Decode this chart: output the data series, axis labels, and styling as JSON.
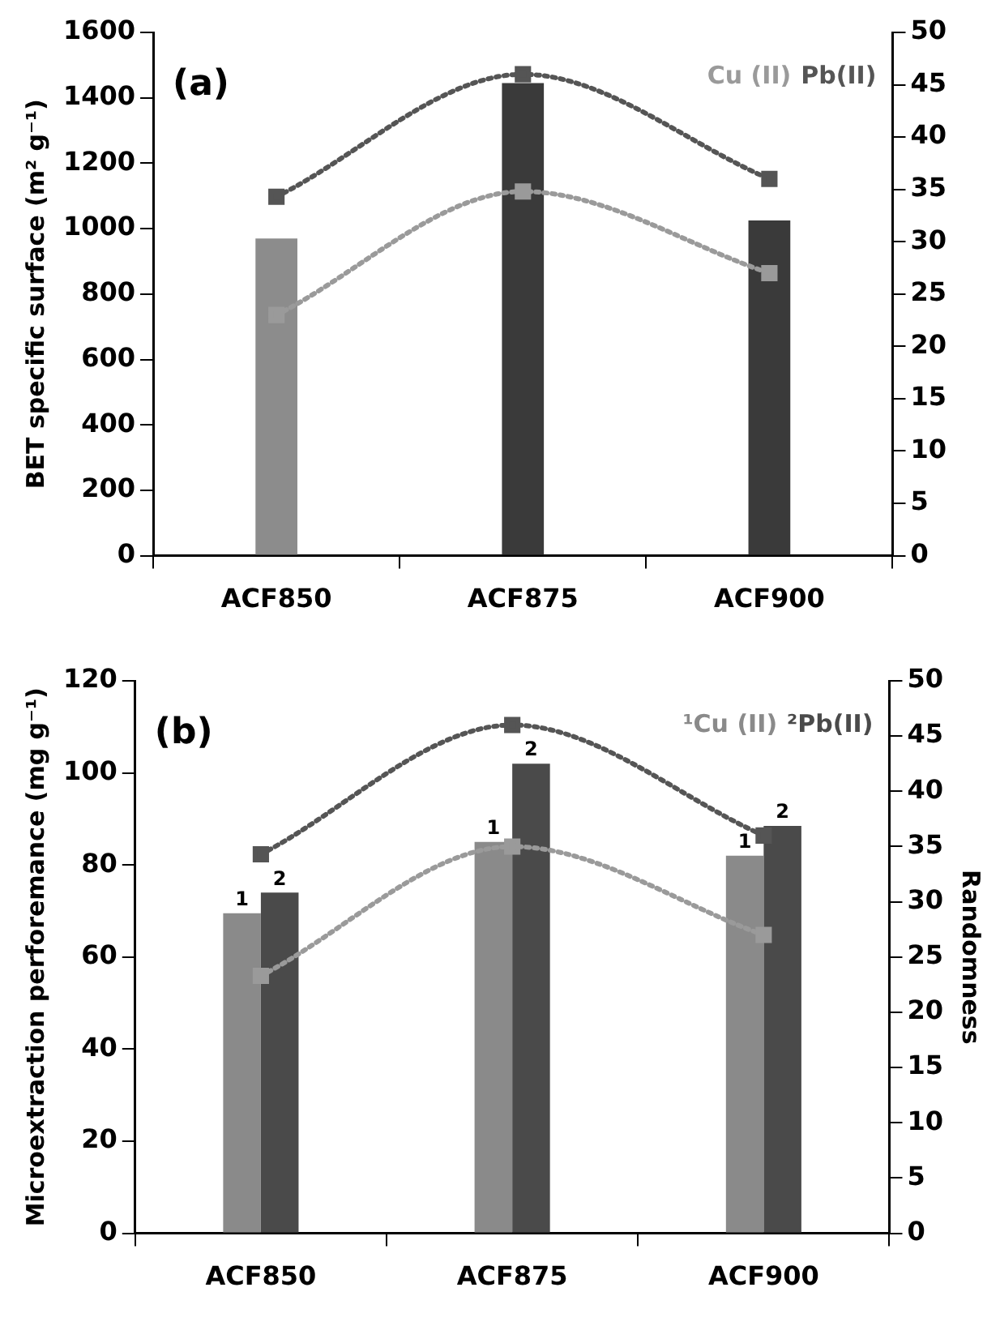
{
  "chart_data": [
    {
      "type": "bar",
      "title": "(a)",
      "categories": [
        "ACF850",
        "ACF875",
        "ACF900"
      ],
      "ylabel": "BET specific surface (m² g⁻¹)",
      "ylim": [
        0,
        1600
      ],
      "yticks": [
        0,
        200,
        400,
        600,
        800,
        1000,
        1200,
        1400,
        1600
      ],
      "y2lim": [
        0,
        50
      ],
      "y2ticks": [
        0,
        5,
        10,
        15,
        20,
        25,
        30,
        35,
        40,
        45,
        50
      ],
      "grid": false,
      "legend": "top right",
      "marker": "square",
      "line_style": "dotted",
      "series": [
        {
          "colors": [
            "#8c8c8c",
            "#3a3a3a",
            "#3a3a3a"
          ],
          "values": [
            970,
            1445,
            1025
          ]
        },
        {
          "type": "line",
          "axis": "y2",
          "name": "Cu (II)",
          "color": "#9a9a9a",
          "values": [
            23,
            34.8,
            27
          ]
        },
        {
          "type": "line",
          "axis": "y2",
          "name": "Pb(II)",
          "color": "#555555",
          "values": [
            34.3,
            46,
            36
          ]
        }
      ]
    },
    {
      "type": "bar",
      "title": "(b)",
      "categories": [
        "ACF850",
        "ACF875",
        "ACF900"
      ],
      "ylabel": "Microextraction perforemance (mg g⁻¹)",
      "y2label": "Randomness",
      "ylim": [
        0,
        120
      ],
      "yticks": [
        0,
        20,
        40,
        60,
        80,
        100,
        120
      ],
      "y2lim": [
        0,
        50
      ],
      "y2ticks": [
        0,
        5,
        10,
        15,
        20,
        25,
        30,
        35,
        40,
        45,
        50
      ],
      "grid": false,
      "legend": "top right",
      "marker": "square",
      "line_style": "dotted",
      "annotations": [
        {
          "text": "1",
          "x": "ACF850",
          "y": 69.5
        },
        {
          "text": "2",
          "x": "ACF850",
          "y": 74
        },
        {
          "text": "1",
          "x": "ACF875",
          "y": 85
        },
        {
          "text": "2",
          "x": "ACF875",
          "y": 102
        },
        {
          "text": "1",
          "x": "ACF900",
          "y": 82
        },
        {
          "text": "2",
          "x": "ACF900",
          "y": 88.5
        }
      ],
      "series": [
        {
          "name": "¹Cu (II)",
          "color": "#8a8a8a",
          "values": [
            69.5,
            85,
            82
          ]
        },
        {
          "name": "²Pb(II)",
          "color": "#4a4a4a",
          "values": [
            74,
            102,
            88.5
          ]
        },
        {
          "type": "line",
          "axis": "y2",
          "color": "#9a9a9a",
          "values": [
            23.3,
            35,
            27
          ]
        },
        {
          "type": "line",
          "axis": "y2",
          "color": "#555555",
          "values": [
            34.3,
            46,
            36
          ]
        }
      ]
    }
  ]
}
